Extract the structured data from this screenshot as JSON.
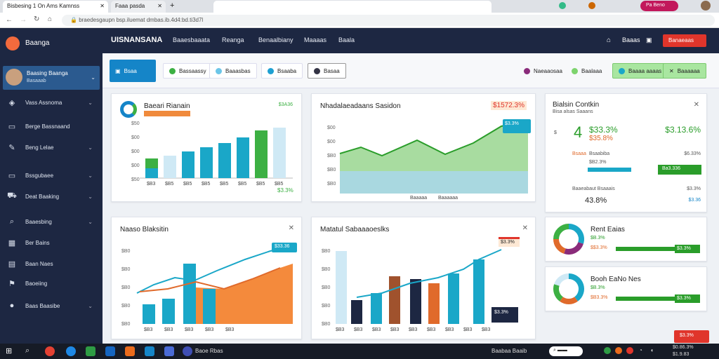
{
  "browser": {
    "tabs": [
      "Bisbesing 1 On Ams Kamnss",
      "Faaa pasda"
    ],
    "address": "braedesgaupn bsp.iluemat dmbas.ib.4d4:bd.ti3d7l",
    "profile_button": "Pa Beno"
  },
  "sidebar": {
    "brand": "Baanga",
    "user": {
      "name": "Baasing Baanga",
      "sub": "Basaaab"
    },
    "items": [
      {
        "label": "Vass Assnoma",
        "icon": "shield-icon",
        "chevron": true
      },
      {
        "label": "Berge Bassnaand",
        "icon": "card-icon",
        "chevron": false
      },
      {
        "label": "Beng Lelae",
        "icon": "edit-icon",
        "chevron": true
      },
      {
        "label": "Bssgubaee",
        "icon": "monitor-icon",
        "chevron": true
      },
      {
        "label": "Deat Baaking",
        "icon": "cart-icon",
        "chevron": true
      },
      {
        "label": "Baaesbing",
        "icon": "search-icon",
        "chevron": true
      },
      {
        "label": "Ber Bains",
        "icon": "grid-icon",
        "chevron": false
      },
      {
        "label": "Baan Naes",
        "icon": "chart-icon",
        "chevron": false
      },
      {
        "label": "Baoeiing",
        "icon": "tag-icon",
        "chevron": false
      },
      {
        "label": "Baas Baasibe",
        "icon": "avatar-icon",
        "chevron": true
      }
    ]
  },
  "topbar": {
    "title": "UISNANSANA",
    "nav": [
      "Baaesbaaata",
      "Reanga",
      "Benaalbiany",
      "Maaaas",
      "Baala"
    ],
    "user": "Baaas",
    "button": "Banaeaas"
  },
  "filters": {
    "active": "Bsaa",
    "items": [
      {
        "label": "Bassaassy",
        "color": "#3cb043"
      },
      {
        "label": "Baaasbas",
        "color": "#6cc6e8"
      },
      {
        "label": "Bsaaba",
        "color": "#1ea0d2"
      },
      {
        "label": "Basaa",
        "color": "#334"
      }
    ],
    "right": [
      {
        "label": "Naeaaosaa",
        "color": "#8a2b7a"
      },
      {
        "label": "Baalaaa",
        "color": "#7dd36d"
      }
    ],
    "chip1": "Baaaa aaaas",
    "chip2": "Baaaaaa"
  },
  "cards": {
    "c1": {
      "title": "Baeari Rianain",
      "value": "$3A36",
      "pct": "$3.3%",
      "ticks": [
        "$50",
        "$00",
        "$00",
        "$00",
        "$50"
      ],
      "xticks": [
        "$B3",
        "$B5",
        "$B5",
        "$B5",
        "$B5",
        "$B5",
        "$B5",
        "$B5"
      ]
    },
    "c2": {
      "title": "Nhadalaeadaans Sasidon",
      "value": "$1572.3%",
      "badge": "$3.3%",
      "xticks": [
        "Baaaaa",
        "Baaaaaa"
      ]
    },
    "c3": {
      "title": "Bialsin Contkin",
      "sub": "Bisa alsas Saaans",
      "big": "4",
      "v1": "$33.3%",
      "v2": "$3.13.6%",
      "v3": "$35.8%",
      "l1": "Bsaaa",
      "l2": "Bsaabiba",
      "l3": "$B2.3%",
      "l4": "$6.33%",
      "pill1": "Ba3.336",
      "sec": "Baaeabaut Bsaaais",
      "v4": "43.8%",
      "v5": "$3.36",
      "v6": "$3.3%"
    },
    "c4": {
      "title": "Naaso Blaksitin",
      "badge": "$33.36",
      "ticks": [
        "$B0",
        "$B0",
        "$B0",
        "$B0",
        "$B0"
      ],
      "xticks": [
        "$B3",
        "$B3",
        "$B3",
        "$B3",
        "$B3"
      ]
    },
    "c5": {
      "title": "Matatul Sabaaaoeslks",
      "badge": "$3.3%",
      "badge2": "$3.3%",
      "ticks": [
        "$B0",
        "$B0",
        "$B0",
        "$B0",
        "$B0"
      ],
      "xticks": [
        "$B3",
        "$B3",
        "$B3",
        "$B3",
        "$B3",
        "$B3",
        "$B3",
        "$B3",
        "$B3"
      ]
    },
    "c6": {
      "title": "Rent Eaias",
      "v1": "$B.3%",
      "v2": "$$3.3%",
      "pill": "$3.3%"
    },
    "c7": {
      "title": "Booh EaNo Nes",
      "v1": "$B.3%",
      "v2": "$B3.3%",
      "pill": "$3.3%"
    }
  },
  "float_button": "$3.3%",
  "taskbar": {
    "item": "Baoe Rbas",
    "tray": "Baabaa Baaib",
    "date": "$0.86.3%",
    "time": "$1.9.83"
  }
}
